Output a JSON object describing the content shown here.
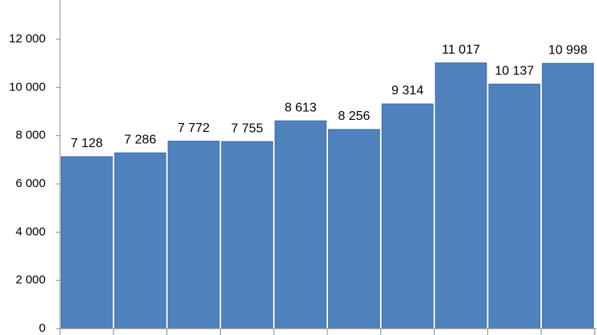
{
  "chart_data": {
    "type": "bar",
    "categories": [
      null,
      null,
      null,
      null,
      null,
      null,
      null,
      null,
      null,
      null
    ],
    "values": [
      7128,
      7286,
      7772,
      7755,
      8613,
      8256,
      9314,
      11017,
      10137,
      10998
    ],
    "value_labels": [
      "7 128",
      "7 286",
      "7 772",
      "7 755",
      "8 613",
      "8 256",
      "9 314",
      "11 017",
      "10 137",
      "10 998"
    ],
    "color": "#4f81bd",
    "ylim": [
      0,
      13600
    ],
    "yticks": [
      {
        "value": 0,
        "label": "0"
      },
      {
        "value": 2000,
        "label": "2 000"
      },
      {
        "value": 4000,
        "label": "4 000"
      },
      {
        "value": 6000,
        "label": "6 000"
      },
      {
        "value": 8000,
        "label": "8 000"
      },
      {
        "value": 10000,
        "label": "10 000"
      },
      {
        "value": 12000,
        "label": "12 000"
      }
    ],
    "grid": false
  }
}
